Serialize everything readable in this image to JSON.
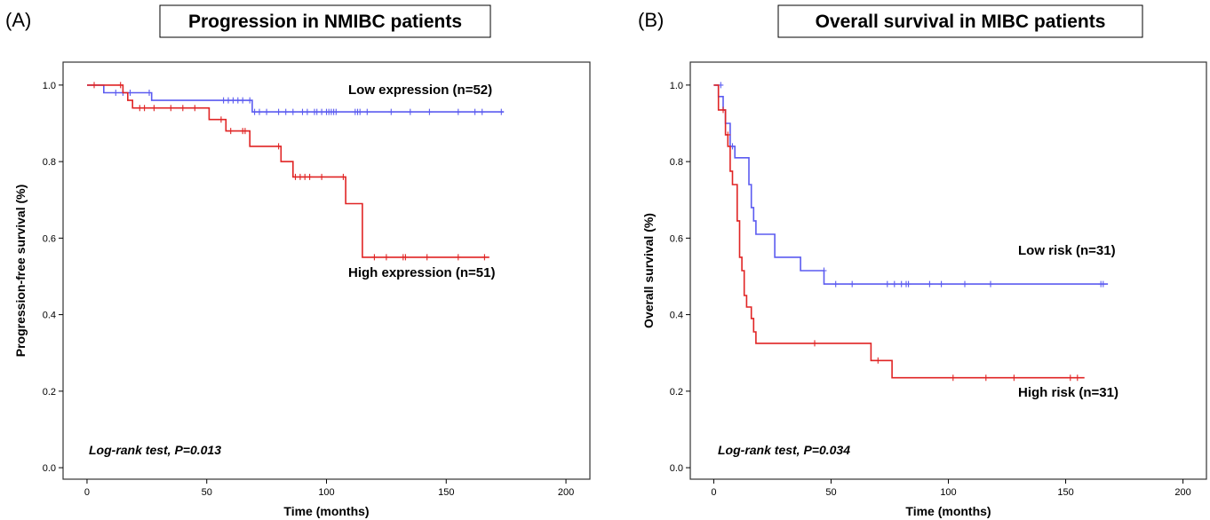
{
  "chart_data": [
    {
      "type": "line",
      "panel": "(A)",
      "title": "Progression in NMIBC patients",
      "xlabel": "Time (months)",
      "ylabel": "Progression-free survival (%)",
      "xlim": [
        -10,
        210
      ],
      "ylim": [
        -0.03,
        1.06
      ],
      "xticks": [
        0,
        50,
        100,
        150,
        200
      ],
      "yticks": [
        0.0,
        0.2,
        0.4,
        0.6,
        0.8,
        1.0
      ],
      "xtick_labels": [
        "0",
        "50",
        "100",
        "150",
        "200"
      ],
      "ytick_labels": [
        "0.0",
        "0.2",
        "0.4",
        "0.6",
        "0.8",
        "1.0"
      ],
      "grid": false,
      "annotation": "Log-rank test, P=0.013",
      "series": [
        {
          "name": "Low expression (n=52)",
          "color": "#5b5bf0",
          "steps": [
            [
              0,
              1.0
            ],
            [
              7,
              0.98
            ],
            [
              27,
              0.96
            ],
            [
              69,
              0.93
            ],
            [
              174,
              0.93
            ]
          ],
          "censored": [
            [
              12,
              0.98
            ],
            [
              15,
              0.98
            ],
            [
              18,
              0.98
            ],
            [
              26,
              0.98
            ],
            [
              57,
              0.96
            ],
            [
              59,
              0.96
            ],
            [
              61,
              0.96
            ],
            [
              63,
              0.96
            ],
            [
              65,
              0.96
            ],
            [
              68,
              0.96
            ],
            [
              70,
              0.93
            ],
            [
              72,
              0.93
            ],
            [
              75,
              0.93
            ],
            [
              80,
              0.93
            ],
            [
              83,
              0.93
            ],
            [
              86,
              0.93
            ],
            [
              90,
              0.93
            ],
            [
              92,
              0.93
            ],
            [
              95,
              0.93
            ],
            [
              96,
              0.93
            ],
            [
              98,
              0.93
            ],
            [
              100,
              0.93
            ],
            [
              101,
              0.93
            ],
            [
              102,
              0.93
            ],
            [
              103,
              0.93
            ],
            [
              104,
              0.93
            ],
            [
              112,
              0.93
            ],
            [
              113,
              0.93
            ],
            [
              114,
              0.93
            ],
            [
              117,
              0.93
            ],
            [
              127,
              0.93
            ],
            [
              135,
              0.93
            ],
            [
              143,
              0.93
            ],
            [
              155,
              0.93
            ],
            [
              162,
              0.93
            ],
            [
              165,
              0.93
            ],
            [
              173,
              0.93
            ]
          ]
        },
        {
          "name": "High expression (n=51)",
          "color": "#e02424",
          "steps": [
            [
              0,
              1.0
            ],
            [
              15,
              0.98
            ],
            [
              17,
              0.96
            ],
            [
              19,
              0.94
            ],
            [
              51,
              0.91
            ],
            [
              58,
              0.88
            ],
            [
              68,
              0.84
            ],
            [
              81,
              0.8
            ],
            [
              86,
              0.76
            ],
            [
              108,
              0.69
            ],
            [
              115,
              0.55
            ],
            [
              168,
              0.55
            ]
          ],
          "censored": [
            [
              3,
              1.0
            ],
            [
              14,
              1.0
            ],
            [
              22,
              0.94
            ],
            [
              24,
              0.94
            ],
            [
              28,
              0.94
            ],
            [
              35,
              0.94
            ],
            [
              40,
              0.94
            ],
            [
              45,
              0.94
            ],
            [
              56,
              0.91
            ],
            [
              60,
              0.88
            ],
            [
              65,
              0.88
            ],
            [
              66,
              0.88
            ],
            [
              80,
              0.84
            ],
            [
              87,
              0.76
            ],
            [
              89,
              0.76
            ],
            [
              91,
              0.76
            ],
            [
              93,
              0.76
            ],
            [
              98,
              0.76
            ],
            [
              107,
              0.76
            ],
            [
              120,
              0.55
            ],
            [
              125,
              0.55
            ],
            [
              132,
              0.55
            ],
            [
              133,
              0.55
            ],
            [
              142,
              0.55
            ],
            [
              155,
              0.55
            ],
            [
              166,
              0.55
            ]
          ]
        }
      ]
    },
    {
      "type": "line",
      "panel": "(B)",
      "title": "Overall survival in MIBC patients",
      "xlabel": "Time (months)",
      "ylabel": "Overall survival (%)",
      "xlim": [
        -10,
        210
      ],
      "ylim": [
        -0.03,
        1.06
      ],
      "xticks": [
        0,
        50,
        100,
        150,
        200
      ],
      "yticks": [
        0.0,
        0.2,
        0.4,
        0.6,
        0.8,
        1.0
      ],
      "xtick_labels": [
        "0",
        "50",
        "100",
        "150",
        "200"
      ],
      "ytick_labels": [
        "0.0",
        "0.2",
        "0.4",
        "0.6",
        "0.8",
        "1.0"
      ],
      "grid": false,
      "annotation": "Log-rank test, P=0.034",
      "series": [
        {
          "name": "Low risk  (n=31)",
          "color": "#5b5bf0",
          "steps": [
            [
              0,
              1.0
            ],
            [
              2,
              0.97
            ],
            [
              4,
              0.935
            ],
            [
              5,
              0.9
            ],
            [
              7,
              0.84
            ],
            [
              9,
              0.81
            ],
            [
              15,
              0.74
            ],
            [
              16,
              0.68
            ],
            [
              17,
              0.645
            ],
            [
              18,
              0.61
            ],
            [
              26,
              0.55
            ],
            [
              37,
              0.515
            ],
            [
              47,
              0.48
            ],
            [
              168,
              0.48
            ]
          ],
          "censored": [
            [
              3,
              1.0
            ],
            [
              8,
              0.84
            ],
            [
              47,
              0.515
            ],
            [
              52,
              0.48
            ],
            [
              59,
              0.48
            ],
            [
              74,
              0.48
            ],
            [
              77,
              0.48
            ],
            [
              80,
              0.48
            ],
            [
              82,
              0.48
            ],
            [
              83,
              0.48
            ],
            [
              92,
              0.48
            ],
            [
              97,
              0.48
            ],
            [
              107,
              0.48
            ],
            [
              118,
              0.48
            ],
            [
              165,
              0.48
            ],
            [
              166,
              0.48
            ]
          ]
        },
        {
          "name": "High risk (n=31)",
          "color": "#e02424",
          "steps": [
            [
              0,
              1.0
            ],
            [
              2,
              0.935
            ],
            [
              5,
              0.87
            ],
            [
              6,
              0.84
            ],
            [
              7,
              0.775
            ],
            [
              8,
              0.74
            ],
            [
              10,
              0.645
            ],
            [
              11,
              0.55
            ],
            [
              12,
              0.515
            ],
            [
              13,
              0.45
            ],
            [
              14,
              0.42
            ],
            [
              16,
              0.39
            ],
            [
              17,
              0.355
            ],
            [
              18,
              0.325
            ],
            [
              67,
              0.28
            ],
            [
              76,
              0.235
            ],
            [
              158,
              0.235
            ]
          ],
          "censored": [
            [
              4,
              0.935
            ],
            [
              6,
              0.87
            ],
            [
              43,
              0.325
            ],
            [
              70,
              0.28
            ],
            [
              102,
              0.235
            ],
            [
              116,
              0.235
            ],
            [
              128,
              0.235
            ],
            [
              152,
              0.235
            ],
            [
              155,
              0.235
            ]
          ]
        }
      ]
    }
  ]
}
